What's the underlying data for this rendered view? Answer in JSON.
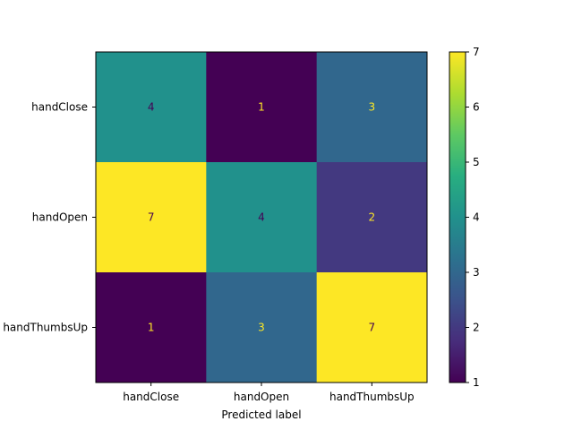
{
  "chart_data": {
    "type": "heatmap",
    "title": "",
    "xlabel": "Predicted label",
    "ylabel": "",
    "x_categories": [
      "handClose",
      "handOpen",
      "handThumbsUp"
    ],
    "y_categories": [
      "handClose",
      "handOpen",
      "handThumbsUp"
    ],
    "values": [
      [
        4,
        1,
        3
      ],
      [
        7,
        4,
        2
      ],
      [
        1,
        3,
        7
      ]
    ],
    "colormap": "viridis",
    "colorbar": {
      "min": 1,
      "max": 7,
      "ticks": [
        "1",
        "2",
        "3",
        "4",
        "5",
        "6",
        "7"
      ]
    },
    "grid": false,
    "annotation_colors": {
      "on_dark": "#fde725",
      "on_light": "#440154"
    }
  }
}
